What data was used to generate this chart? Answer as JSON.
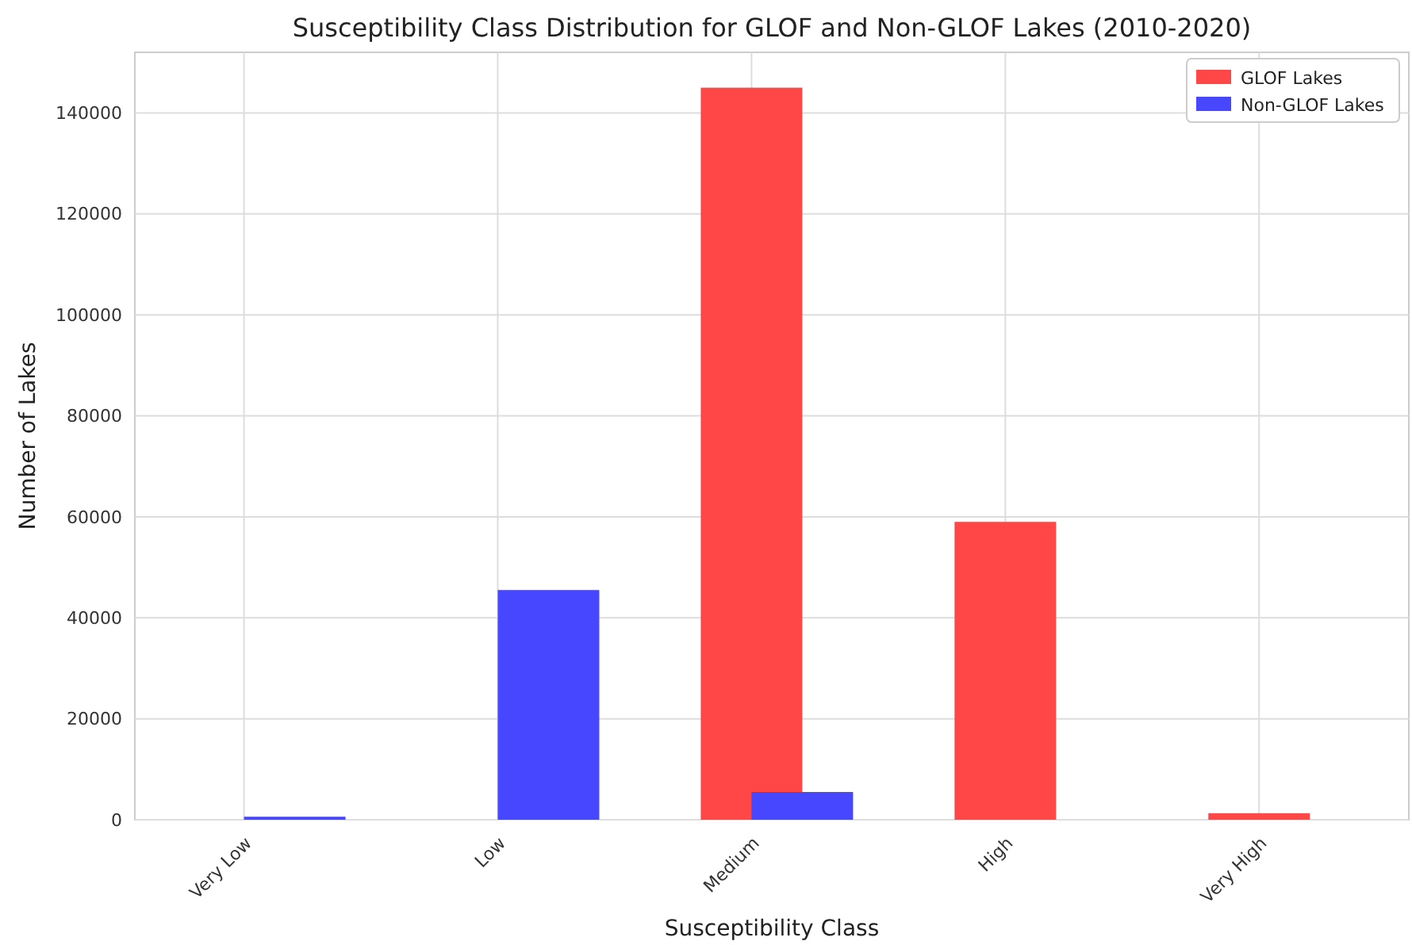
{
  "chart_data": {
    "type": "bar",
    "title": "Susceptibility Class Distribution for GLOF and Non-GLOF Lakes (2010-2020)",
    "xlabel": "Susceptibility Class",
    "ylabel": "Number of Lakes",
    "categories": [
      "Very Low",
      "Low",
      "Medium",
      "High",
      "Very High"
    ],
    "series": [
      {
        "name": "GLOF Lakes",
        "color": "#ff4747",
        "values": [
          0,
          0,
          145000,
          59000,
          1300
        ]
      },
      {
        "name": "Non-GLOF Lakes",
        "color": "#4747ff",
        "values": [
          600,
          45500,
          5500,
          0,
          0
        ]
      }
    ],
    "ylim": [
      0,
      152000
    ],
    "yticks": [
      0,
      20000,
      40000,
      60000,
      80000,
      100000,
      120000,
      140000
    ],
    "grid": true,
    "legend": "top right"
  }
}
